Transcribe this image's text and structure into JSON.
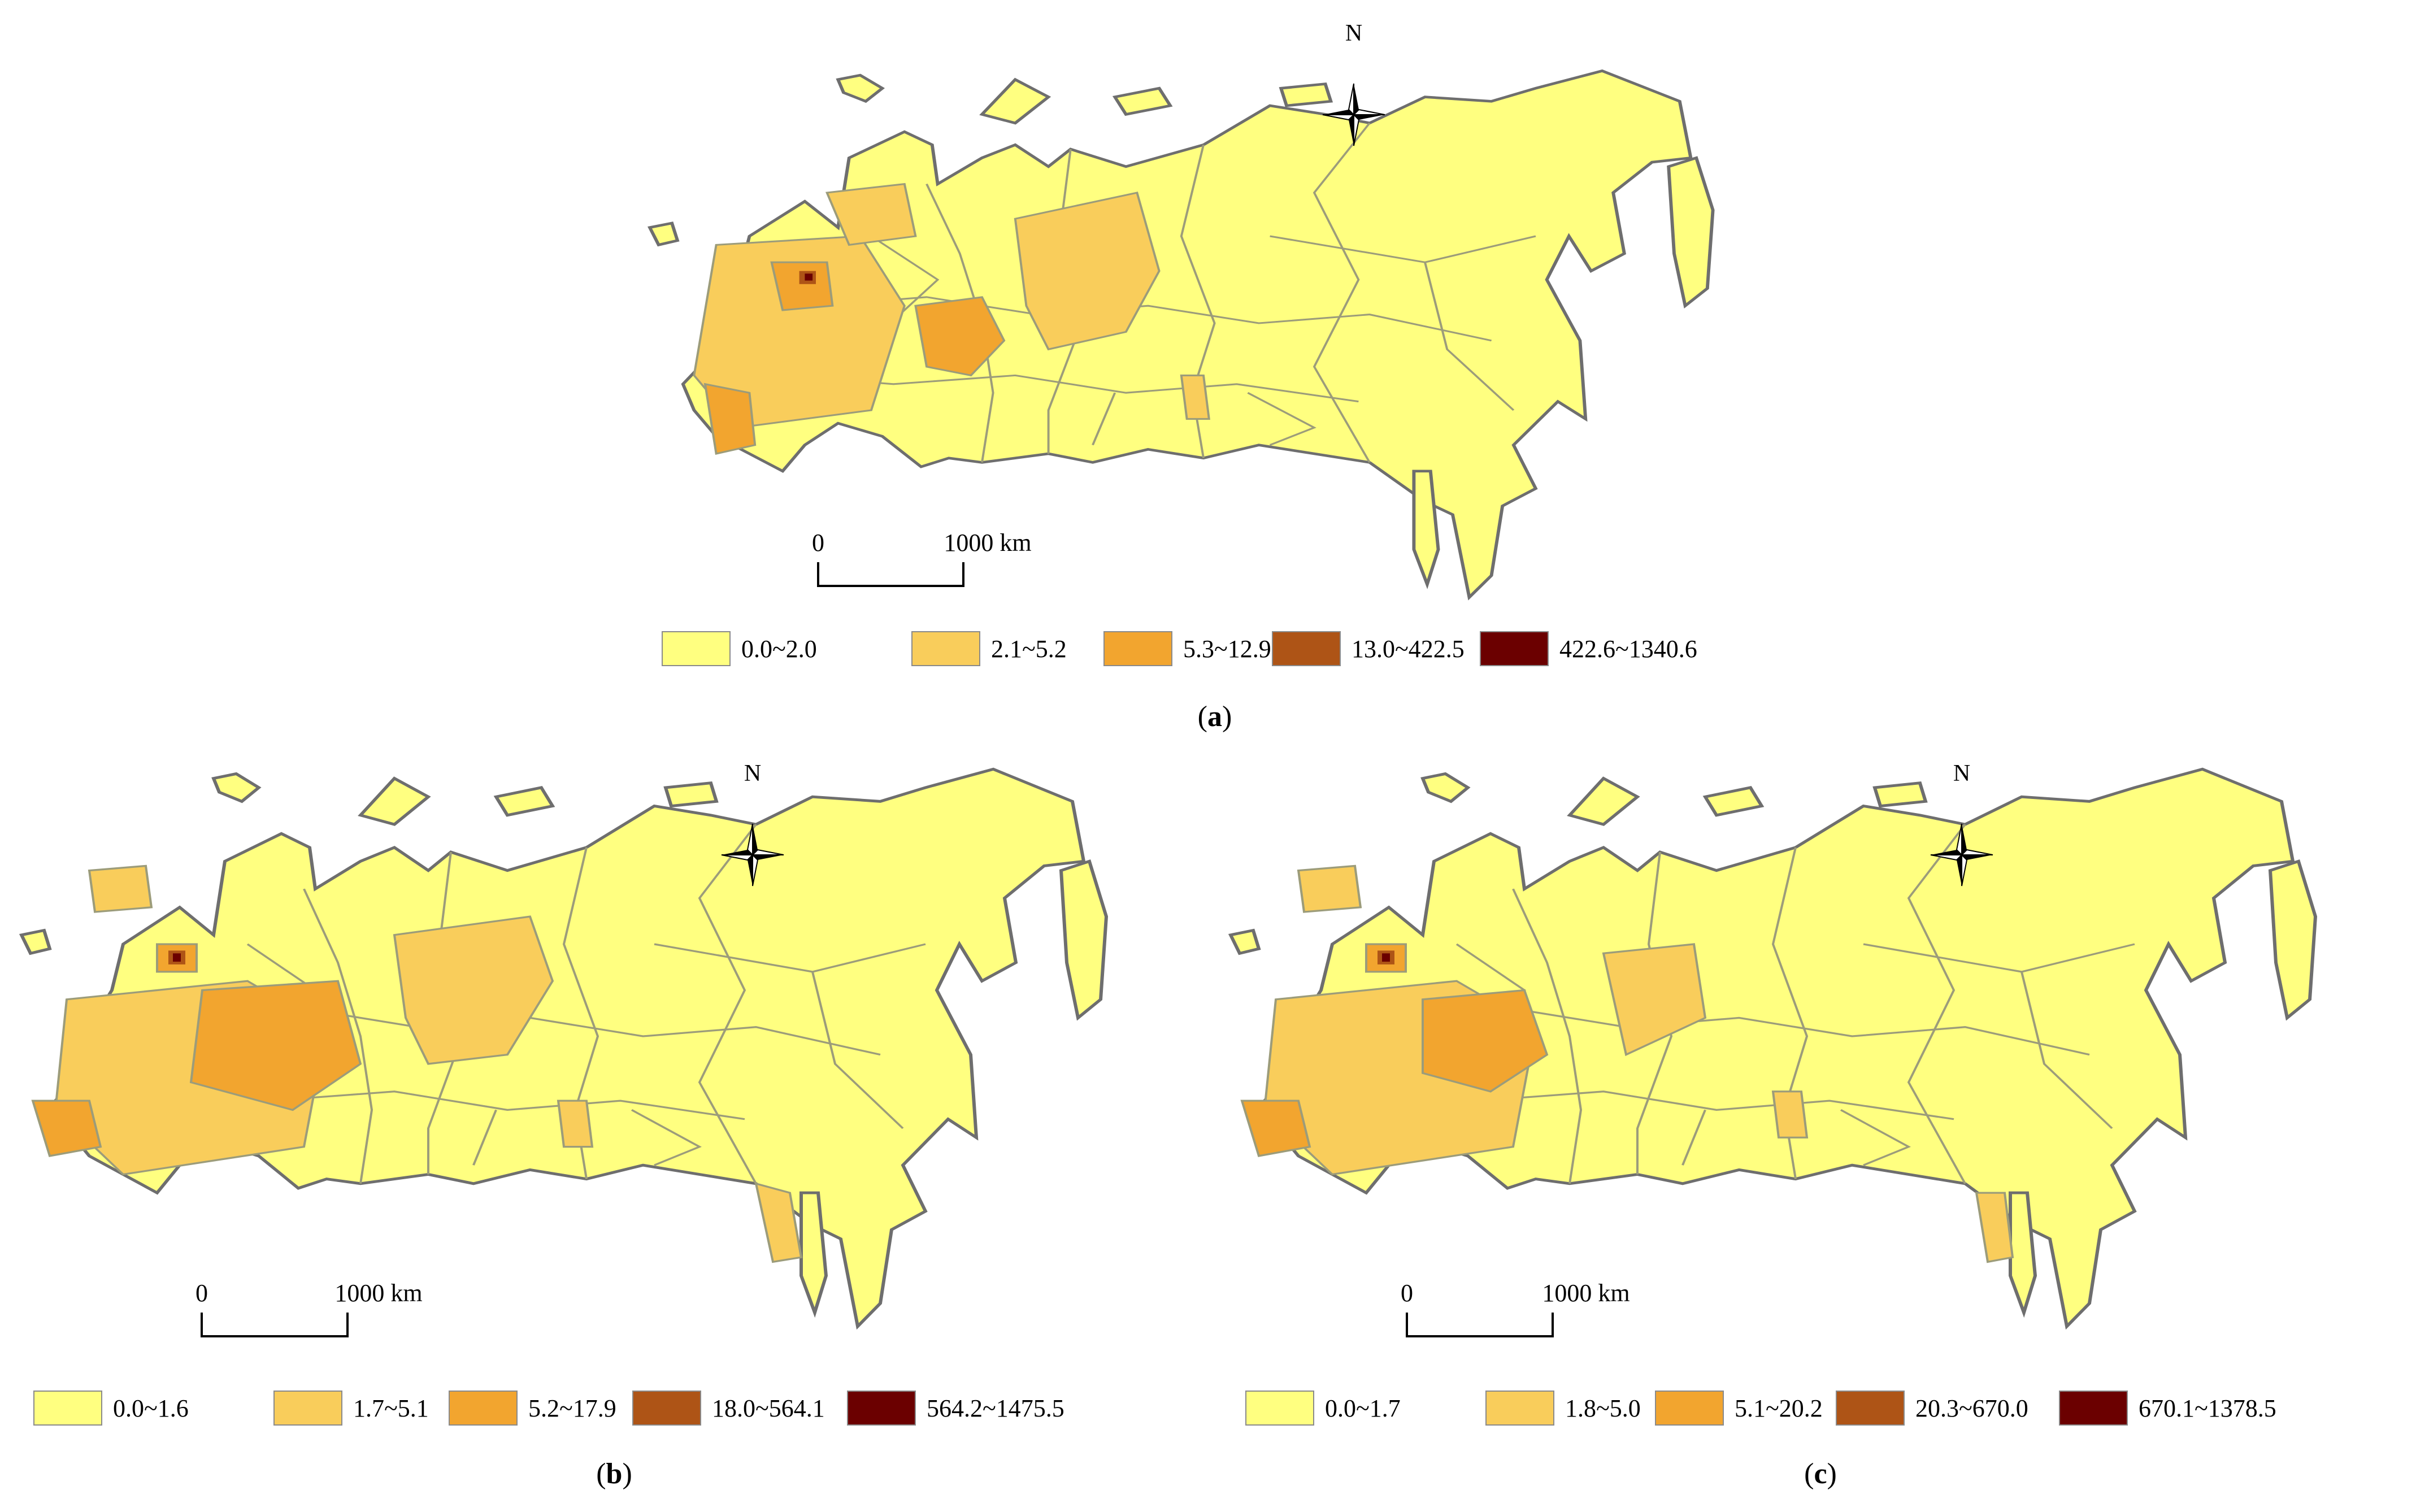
{
  "panels": [
    {
      "id": "a",
      "caption": {
        "open": "(",
        "letter": "a",
        "close": ")"
      },
      "north_label": "N",
      "scale": {
        "zero": "0",
        "distance": "1000 km"
      },
      "legend": [
        {
          "label": "0.0~2.0",
          "color": "#FFFF80"
        },
        {
          "label": "2.1~5.2",
          "color": "#F9CD5B"
        },
        {
          "label": "5.3~12.9",
          "color": "#F2A52F"
        },
        {
          "label": "13.0~422.5",
          "color": "#AE5416"
        },
        {
          "label": "422.6~1340.6",
          "color": "#6B0000"
        }
      ]
    },
    {
      "id": "b",
      "caption": {
        "open": "(",
        "letter": "b",
        "close": ")"
      },
      "north_label": "N",
      "scale": {
        "zero": "0",
        "distance": "1000 km"
      },
      "legend": [
        {
          "label": "0.0~1.6",
          "color": "#FFFF80"
        },
        {
          "label": "1.7~5.1",
          "color": "#F9CD5B"
        },
        {
          "label": "5.2~17.9",
          "color": "#F2A52F"
        },
        {
          "label": "18.0~564.1",
          "color": "#AE5416"
        },
        {
          "label": "564.2~1475.5",
          "color": "#6B0000"
        }
      ]
    },
    {
      "id": "c",
      "caption": {
        "open": "(",
        "letter": "c",
        "close": ")"
      },
      "north_label": "N",
      "scale": {
        "zero": "0",
        "distance": "1000 km"
      },
      "legend": [
        {
          "label": "0.0~1.7",
          "color": "#FFFF80"
        },
        {
          "label": "1.8~5.0",
          "color": "#F9CD5B"
        },
        {
          "label": "5.1~20.2",
          "color": "#F2A52F"
        },
        {
          "label": "20.3~670.0",
          "color": "#AE5416"
        },
        {
          "label": "670.1~1378.5",
          "color": "#6B0000"
        }
      ]
    }
  ],
  "colors": {
    "land_base": "#FFFF80",
    "boundary": "#9C9C7A",
    "coast": "#6E6E6E",
    "class2": "#F9CD5B",
    "class3": "#F2A52F",
    "class4": "#AE5416",
    "class5": "#6B0000"
  }
}
